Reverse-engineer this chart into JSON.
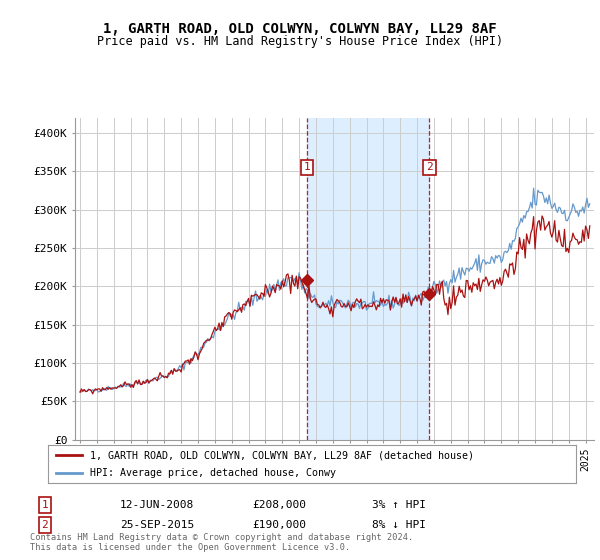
{
  "title": "1, GARTH ROAD, OLD COLWYN, COLWYN BAY, LL29 8AF",
  "subtitle": "Price paid vs. HM Land Registry's House Price Index (HPI)",
  "ylim": [
    0,
    420000
  ],
  "yticks": [
    0,
    50000,
    100000,
    150000,
    200000,
    250000,
    300000,
    350000,
    400000
  ],
  "ytick_labels": [
    "£0",
    "£50K",
    "£100K",
    "£150K",
    "£200K",
    "£250K",
    "£300K",
    "£350K",
    "£400K"
  ],
  "hpi_color": "#6699cc",
  "price_color": "#aa1111",
  "bg_color": "#ffffff",
  "plot_bg": "#ffffff",
  "grid_color": "#cccccc",
  "shade_color": "#ddeeff",
  "sale1_date": "12-JUN-2008",
  "sale1_price": "£208,000",
  "sale1_pct": "3% ↑ HPI",
  "sale2_date": "25-SEP-2015",
  "sale2_price": "£190,000",
  "sale2_pct": "8% ↓ HPI",
  "sale1_year": 2008.45,
  "sale2_year": 2015.73,
  "sale1_value": 208000,
  "sale2_value": 190000,
  "legend_line1": "1, GARTH ROAD, OLD COLWYN, COLWYN BAY, LL29 8AF (detached house)",
  "legend_line2": "HPI: Average price, detached house, Conwy",
  "footer": "Contains HM Land Registry data © Crown copyright and database right 2024.\nThis data is licensed under the Open Government Licence v3.0.",
  "xmin": 1994.7,
  "xmax": 2025.5
}
